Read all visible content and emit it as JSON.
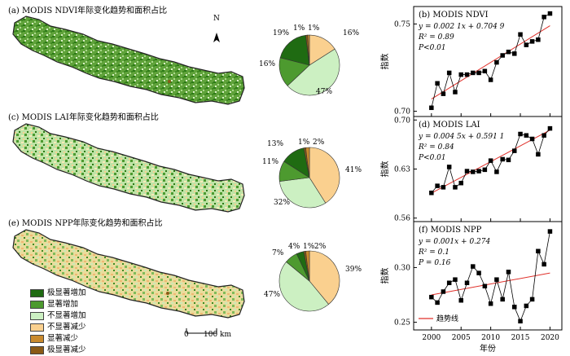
{
  "maps": {
    "ndvi_title": "(a) MODIS NDVI年际变化趋势和面积占比",
    "lai_title": "(c) MODIS LAI年际变化趋势和面积占比",
    "npp_title": "(e) MODIS NPP年际变化趋势和面积占比",
    "north_label": "N",
    "scale_zero": "0",
    "scale_text": "100 km"
  },
  "legend": [
    {
      "label": "极显著增加",
      "color": "#1f6b12"
    },
    {
      "label": "显著增加",
      "color": "#4d9a2f"
    },
    {
      "label": "不显著增加",
      "color": "#ccf0c2"
    },
    {
      "label": "不显著减少",
      "color": "#fad08f"
    },
    {
      "label": "显著减少",
      "color": "#c98a2e"
    },
    {
      "label": "极显著减少",
      "color": "#8a5a16"
    }
  ],
  "chart_data": [
    {
      "type": "pie",
      "id": "pie-ndvi",
      "labels": [
        "极显著增加",
        "显著增加",
        "不显著增加",
        "不显著减少",
        "显著减少",
        "极显著减少"
      ],
      "values": [
        19,
        16,
        47,
        16,
        1,
        1
      ],
      "value_labels": [
        "19%",
        "16%",
        "47%",
        "16%",
        "1%",
        "1%"
      ]
    },
    {
      "type": "pie",
      "id": "pie-lai",
      "labels": [
        "极显著增加",
        "显著增加",
        "不显著增加",
        "不显著减少",
        "显著减少",
        "极显著减少"
      ],
      "values": [
        13,
        11,
        32,
        41,
        2,
        1
      ],
      "value_labels": [
        "13%",
        "11%",
        "32%",
        "41%",
        "2%",
        "1%"
      ]
    },
    {
      "type": "pie",
      "id": "pie-npp",
      "labels": [
        "极显著增加",
        "显著增加",
        "不显著增加",
        "不显著减少",
        "显著减少",
        "极显著减少"
      ],
      "values": [
        4,
        7,
        47,
        39,
        2,
        1
      ],
      "value_labels": [
        "4%",
        "7%",
        "47%",
        "39%",
        "2%",
        "1%"
      ]
    },
    {
      "type": "line",
      "id": "line-ndvi",
      "title": "(b) MODIS NDVI",
      "eq": "y = 0.002 1x + 0.704 9",
      "r2": "R² = 0.89",
      "p": "P<0.01",
      "ylabel": "指数",
      "ylim": [
        0.697,
        0.76
      ],
      "yticks": [
        0.7,
        0.75
      ],
      "ytick_labels": [
        "0.70",
        "0.75"
      ],
      "x": [
        2000,
        2001,
        2002,
        2003,
        2004,
        2005,
        2006,
        2007,
        2008,
        2009,
        2010,
        2011,
        2012,
        2013,
        2014,
        2015,
        2016,
        2017,
        2018,
        2019,
        2020
      ],
      "y": [
        0.702,
        0.716,
        0.71,
        0.722,
        0.711,
        0.721,
        0.721,
        0.722,
        0.722,
        0.723,
        0.718,
        0.728,
        0.732,
        0.734,
        0.733,
        0.744,
        0.738,
        0.74,
        0.741,
        0.754,
        0.756
      ],
      "trend": {
        "slope": 0.0021,
        "intercept": 0.7049
      }
    },
    {
      "type": "line",
      "id": "line-lai",
      "title": "(d) MODIS LAI",
      "eq": "y = 0.004 5x + 0.591 1",
      "r2": "R² = 0.84",
      "p": "P<0.01",
      "ylabel": "指数",
      "ylim": [
        0.555,
        0.705
      ],
      "yticks": [
        0.56,
        0.63,
        0.7
      ],
      "ytick_labels": [
        "0.56",
        "0.63",
        "0.70"
      ],
      "x": [
        2000,
        2001,
        2002,
        2003,
        2004,
        2005,
        2006,
        2007,
        2008,
        2009,
        2010,
        2011,
        2012,
        2013,
        2014,
        2015,
        2016,
        2017,
        2018,
        2019,
        2020
      ],
      "y": [
        0.596,
        0.606,
        0.604,
        0.633,
        0.604,
        0.61,
        0.627,
        0.626,
        0.627,
        0.629,
        0.642,
        0.626,
        0.644,
        0.643,
        0.656,
        0.68,
        0.678,
        0.673,
        0.651,
        0.678,
        0.688
      ],
      "trend": {
        "slope": 0.0045,
        "intercept": 0.5911
      }
    },
    {
      "type": "line",
      "id": "line-npp",
      "title": "(f) MODIS NPP",
      "eq": "y = 0.001x + 0.274",
      "r2": "R² = 0.1",
      "p": "P = 0.16",
      "xlabel": "年份",
      "ylabel": "指数",
      "ylim": [
        0.243,
        0.342
      ],
      "yticks": [
        0.25,
        0.3
      ],
      "ytick_labels": [
        "0.25",
        "0.30"
      ],
      "xticks": [
        2000,
        2005,
        2010,
        2015,
        2020
      ],
      "x": [
        2000,
        2001,
        2002,
        2003,
        2004,
        2005,
        2006,
        2007,
        2008,
        2009,
        2010,
        2011,
        2012,
        2013,
        2014,
        2015,
        2016,
        2017,
        2018,
        2019,
        2020
      ],
      "y": [
        0.273,
        0.268,
        0.278,
        0.286,
        0.289,
        0.27,
        0.286,
        0.301,
        0.295,
        0.283,
        0.267,
        0.289,
        0.271,
        0.296,
        0.264,
        0.251,
        0.265,
        0.271,
        0.315,
        0.303,
        0.333
      ],
      "trend": {
        "slope": 0.001,
        "intercept": 0.274
      },
      "legend_label": "趋势线"
    }
  ]
}
